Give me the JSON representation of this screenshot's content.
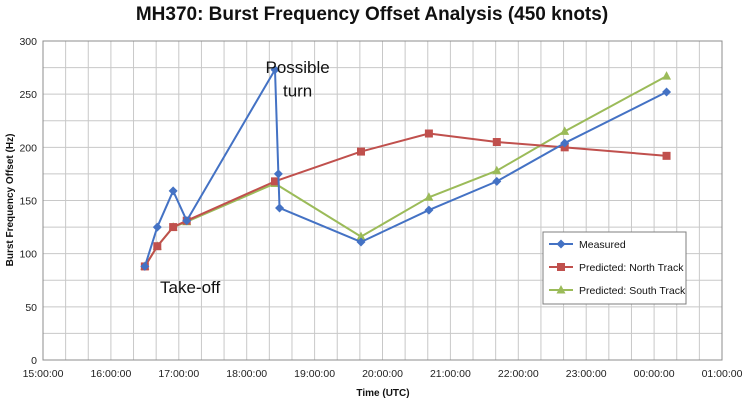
{
  "chart_data": {
    "type": "line",
    "title": "MH370: Burst Frequency Offset Analysis (450 knots)",
    "xlabel": "Time (UTC)",
    "ylabel": "Burst Frequency Offset (Hz)",
    "xlim": [
      "15:00:00",
      "01:00:00"
    ],
    "ylim": [
      0,
      300
    ],
    "yticks": [
      0,
      50,
      100,
      150,
      200,
      250,
      300
    ],
    "xticks": [
      "15:00:00",
      "16:00:00",
      "17:00:00",
      "18:00:00",
      "19:00:00",
      "20:00:00",
      "21:00:00",
      "22:00:00",
      "23:00:00",
      "00:00:00",
      "01:00:00"
    ],
    "grid": true,
    "legend_position": "bottom-right",
    "series": [
      {
        "name": "Measured",
        "color": "#4472c4",
        "marker": "diamond",
        "points": [
          {
            "x": "16:30",
            "y": 88
          },
          {
            "x": "16:41",
            "y": 125
          },
          {
            "x": "16:55",
            "y": 159
          },
          {
            "x": "17:07",
            "y": 131
          },
          {
            "x": "18:25",
            "y": 273
          },
          {
            "x": "18:28",
            "y": 175
          },
          {
            "x": "18:29",
            "y": 143
          },
          {
            "x": "19:41",
            "y": 111
          },
          {
            "x": "20:41",
            "y": 141
          },
          {
            "x": "21:41",
            "y": 168
          },
          {
            "x": "22:41",
            "y": 204
          },
          {
            "x": "00:11",
            "y": 252
          }
        ]
      },
      {
        "name": "Predicted: North Track",
        "color": "#c0504d",
        "marker": "square",
        "points": [
          {
            "x": "16:30",
            "y": 88
          },
          {
            "x": "16:41",
            "y": 107
          },
          {
            "x": "16:55",
            "y": 125
          },
          {
            "x": "17:07",
            "y": 131
          },
          {
            "x": "18:25",
            "y": 168
          },
          {
            "x": "19:41",
            "y": 196
          },
          {
            "x": "20:41",
            "y": 213
          },
          {
            "x": "21:41",
            "y": 205
          },
          {
            "x": "22:41",
            "y": 200
          },
          {
            "x": "00:11",
            "y": 192
          }
        ]
      },
      {
        "name": "Predicted: South Track",
        "color": "#9bbb59",
        "marker": "triangle",
        "points": [
          {
            "x": "16:30",
            "y": 88
          },
          {
            "x": "16:41",
            "y": 107
          },
          {
            "x": "16:55",
            "y": 125
          },
          {
            "x": "17:07",
            "y": 130
          },
          {
            "x": "18:25",
            "y": 166
          },
          {
            "x": "19:41",
            "y": 116
          },
          {
            "x": "20:41",
            "y": 153
          },
          {
            "x": "21:41",
            "y": 178
          },
          {
            "x": "22:41",
            "y": 215
          },
          {
            "x": "00:11",
            "y": 267
          }
        ]
      }
    ],
    "annotations": [
      {
        "text": "Take-off",
        "x": "17:10",
        "y": 63
      },
      {
        "text": "Possible",
        "x": "18:45",
        "y": 270
      },
      {
        "text": "turn",
        "x": "18:45",
        "y": 248
      }
    ]
  }
}
